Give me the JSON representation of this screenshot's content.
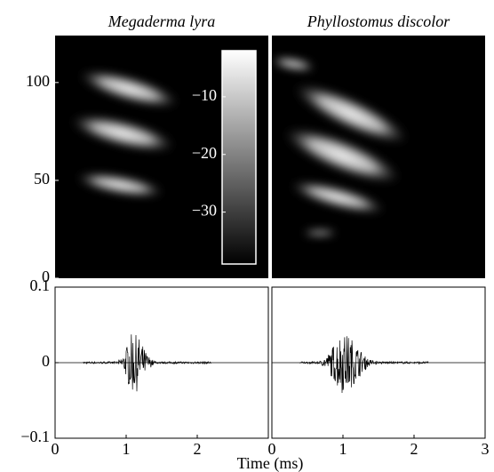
{
  "chart_data": [
    {
      "type": "spectrogram",
      "title": "Megaderma lyra",
      "xlim": [
        0,
        3
      ],
      "ylim": [
        0,
        124
      ],
      "yticks": [
        0,
        50,
        100
      ]
    },
    {
      "type": "spectrogram",
      "title": "Phyllostomus discolor",
      "xlim": [
        0,
        3
      ],
      "ylim": [
        0,
        124
      ]
    },
    {
      "type": "colorbar",
      "ylim": [
        -39,
        -2
      ],
      "yticks": [
        {
          "value": -10,
          "label": "−10"
        },
        {
          "value": -20,
          "label": "−20"
        },
        {
          "value": -30,
          "label": "−30"
        }
      ]
    },
    {
      "type": "waveform",
      "xlim": [
        0,
        3
      ],
      "xticks": [
        0,
        1,
        2
      ],
      "ylim": [
        -0.1,
        0.1
      ],
      "yticks": [
        {
          "value": -0.1,
          "label": "−0.1"
        },
        0,
        0.1
      ]
    },
    {
      "type": "waveform",
      "xlim": [
        0,
        3
      ],
      "xticks": [
        0,
        1,
        2,
        3
      ],
      "ylim": [
        -0.1,
        0.1
      ],
      "x_label": "Time (ms)"
    }
  ]
}
